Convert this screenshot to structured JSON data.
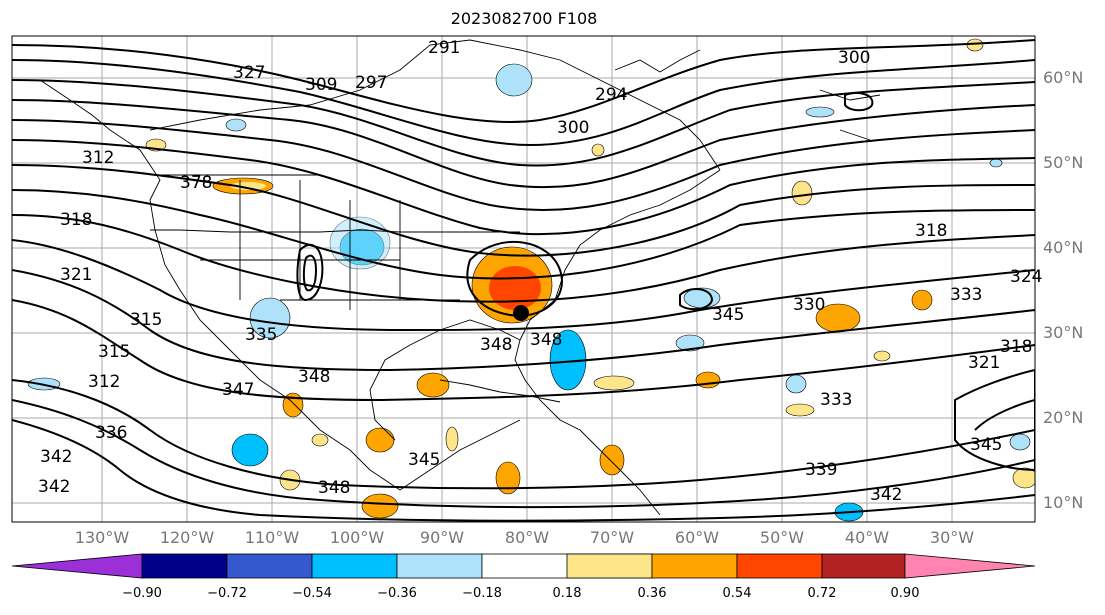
{
  "title": "2023082700 F108",
  "lat_labels": [
    "60°N",
    "50°N",
    "40°N",
    "30°N",
    "20°N",
    "10°N"
  ],
  "lon_labels": [
    "130°W",
    "120°W",
    "110°W",
    "100°W",
    "90°W",
    "80°W",
    "70°W",
    "60°W",
    "50°W",
    "40°W",
    "30°W"
  ],
  "contour_labels": [
    "291",
    "297",
    "294",
    "300",
    "309",
    "327",
    "312",
    "318",
    "321",
    "315",
    "378",
    "315",
    "312",
    "336",
    "342",
    "342",
    "347",
    "335",
    "348",
    "348",
    "348",
    "345",
    "348",
    "300",
    "318",
    "324",
    "333",
    "330",
    "345",
    "333",
    "339",
    "342",
    "321",
    "318",
    "345"
  ],
  "colorbar": {
    "ticks": [
      "−0.90",
      "−0.72",
      "−0.54",
      "−0.36",
      "−0.18",
      "0.18",
      "0.36",
      "0.54",
      "0.72",
      "0.90"
    ],
    "colors": [
      "#9b30d9",
      "#00008b",
      "#3558cf",
      "#00bfff",
      "#aee2fb",
      "#ffffff",
      "#fde68a",
      "#ffa500",
      "#ff4500",
      "#b22222",
      "#ff85b0"
    ]
  },
  "colors": {
    "positive_strong": "#ff4500",
    "positive_mid": "#ffa500",
    "positive_weak": "#fde68a",
    "negative_weak": "#aee2fb",
    "negative_mid": "#00bfff"
  },
  "marker": "storm-center-dot"
}
